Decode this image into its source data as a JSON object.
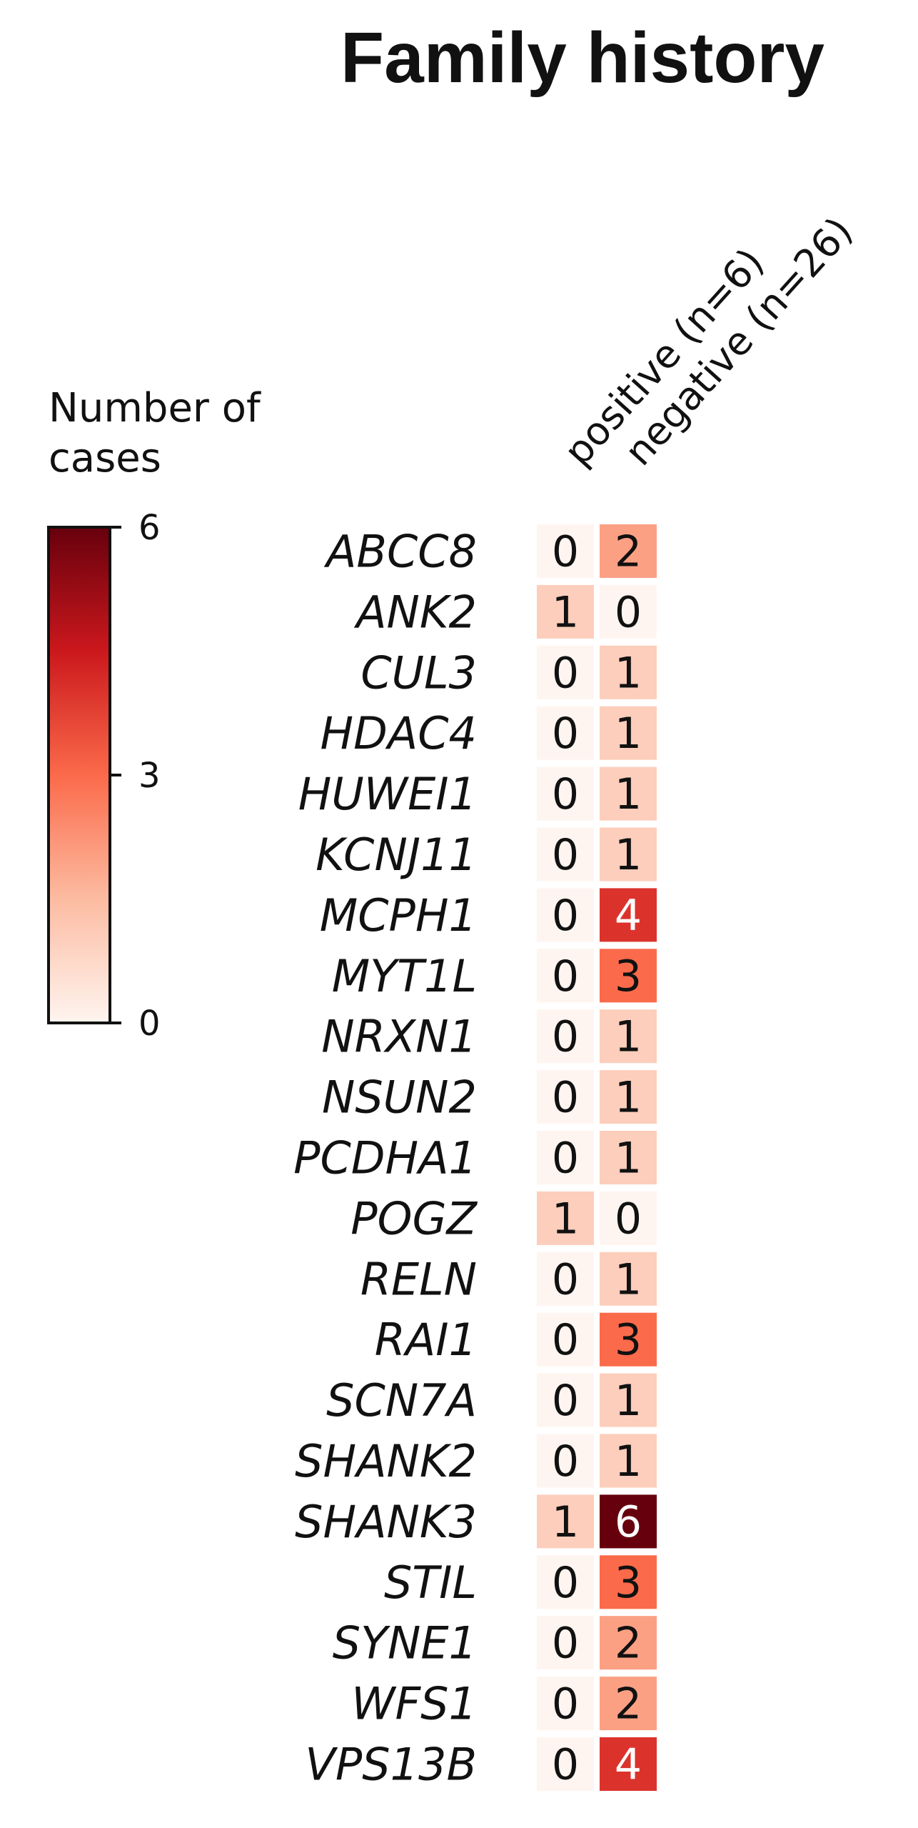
{
  "chart_data": {
    "type": "heatmap",
    "title": "Family history",
    "columns": [
      "positive (n=6)",
      "negative (n=26)"
    ],
    "rows": [
      "ABCC8",
      "ANK2",
      "CUL3",
      "HDAC4",
      "HUWEI1",
      "KCNJ11",
      "MCPH1",
      "MYT1L",
      "NRXN1",
      "NSUN2",
      "PCDHA1",
      "POGZ",
      "RELN",
      "RAI1",
      "SCN7A",
      "SHANK2",
      "SHANK3",
      "STIL",
      "SYNE1",
      "WFS1",
      "VPS13B"
    ],
    "values": [
      [
        0,
        2
      ],
      [
        1,
        0
      ],
      [
        0,
        1
      ],
      [
        0,
        1
      ],
      [
        0,
        1
      ],
      [
        0,
        1
      ],
      [
        0,
        4
      ],
      [
        0,
        3
      ],
      [
        0,
        1
      ],
      [
        0,
        1
      ],
      [
        0,
        1
      ],
      [
        1,
        0
      ],
      [
        0,
        1
      ],
      [
        0,
        3
      ],
      [
        0,
        1
      ],
      [
        0,
        1
      ],
      [
        1,
        6
      ],
      [
        0,
        3
      ],
      [
        0,
        2
      ],
      [
        0,
        2
      ],
      [
        0,
        4
      ]
    ],
    "colorbar": {
      "title": "Number of cases",
      "min": 0,
      "max": 6,
      "ticks": [
        0,
        3,
        6
      ],
      "colors": [
        "#fff5f0",
        "#fcbba1",
        "#fb6a4a",
        "#cb181d",
        "#67000d"
      ]
    }
  }
}
